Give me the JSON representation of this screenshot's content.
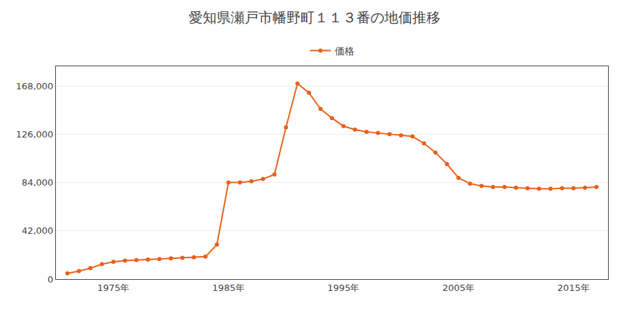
{
  "chart_data": {
    "type": "line",
    "title": "愛知県瀬戸市幡野町１１３番の地価推移",
    "x": [
      1971,
      1972,
      1973,
      1974,
      1975,
      1976,
      1977,
      1978,
      1979,
      1980,
      1981,
      1982,
      1983,
      1984,
      1985,
      1986,
      1987,
      1988,
      1989,
      1990,
      1991,
      1992,
      1993,
      1994,
      1995,
      1996,
      1997,
      1998,
      1999,
      2000,
      2001,
      2002,
      2003,
      2004,
      2005,
      2006,
      2007,
      2008,
      2009,
      2010,
      2011,
      2012,
      2013,
      2014,
      2015,
      2016,
      2017
    ],
    "series": [
      {
        "name": "価格",
        "color": "#e8611a",
        "marker": "circle",
        "values": [
          5000,
          7000,
          9500,
          13000,
          15000,
          16000,
          16500,
          17000,
          17500,
          18000,
          18500,
          19000,
          19500,
          30000,
          84000,
          84000,
          85000,
          87000,
          91000,
          132000,
          170000,
          162000,
          148000,
          140000,
          133000,
          130000,
          128000,
          127000,
          126000,
          125000,
          124000,
          118000,
          110000,
          100000,
          88000,
          83000,
          81000,
          80000,
          80000,
          79500,
          79000,
          78500,
          78500,
          79000,
          79000,
          79500,
          80000
        ]
      }
    ],
    "xlim": [
      1970,
      2018
    ],
    "xticks": [
      {
        "value": 1975,
        "label": "1975年"
      },
      {
        "value": 1985,
        "label": "1985年"
      },
      {
        "value": 1995,
        "label": "1995年"
      },
      {
        "value": 2005,
        "label": "2005年"
      },
      {
        "value": 2015,
        "label": "2015年"
      }
    ],
    "ylim": [
      0,
      185000
    ],
    "yticks": [
      0,
      {
        "value": 42000,
        "label": "42,000"
      },
      {
        "value": 84000,
        "label": "84,000"
      },
      {
        "value": 126000,
        "label": "126,000"
      },
      {
        "value": 168000,
        "label": "168,000"
      }
    ],
    "grid": "y",
    "legend": "upper center"
  }
}
